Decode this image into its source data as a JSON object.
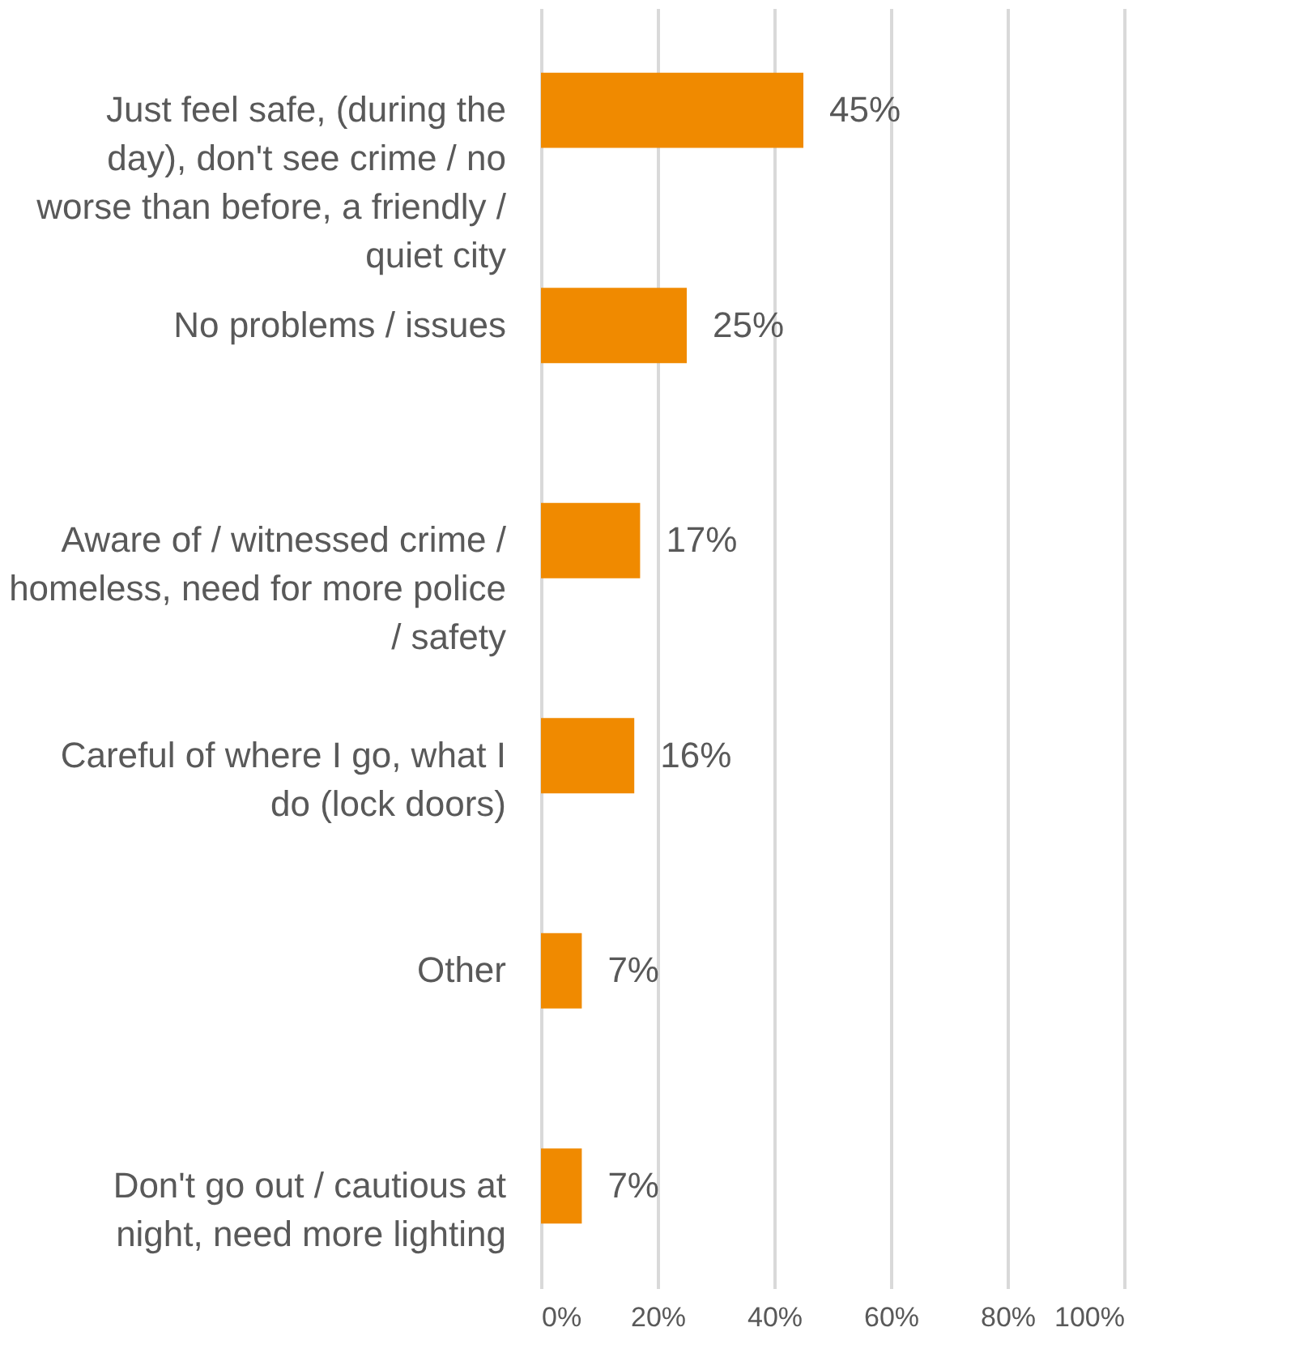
{
  "chart_data": {
    "type": "bar",
    "orientation": "horizontal",
    "categories": [
      "Just feel safe, (during the day), don't see crime / no worse than before, a friendly / quiet city",
      "No problems / issues",
      "Aware of / witnessed crime / homeless, need for more police / safety",
      "Careful of where I go, what I do (lock doors)",
      "Other",
      "Don't go out / cautious at night, need more lighting"
    ],
    "values": [
      45,
      25,
      17,
      16,
      7,
      7
    ],
    "value_labels": [
      "45%",
      "25%",
      "17%",
      "16%",
      "7%",
      "7%"
    ],
    "color": "#f08a00",
    "xlim": [
      0,
      100
    ],
    "xticks": [
      {
        "value": 0,
        "label": "0%"
      },
      {
        "value": 20,
        "label": "20%"
      },
      {
        "value": 40,
        "label": "40%"
      },
      {
        "value": 60,
        "label": "60%"
      },
      {
        "value": 80,
        "label": "80%"
      },
      {
        "value": 100,
        "label": "100%"
      }
    ],
    "grid": "x"
  }
}
